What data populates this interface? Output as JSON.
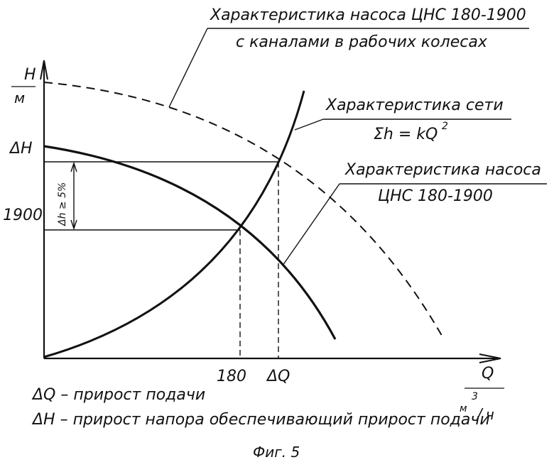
{
  "labels": {
    "pump_char_modified_line1": "Характеристика насоса ЦНС 180-1900",
    "pump_char_modified_line2": "с каналами в рабочих колесах",
    "network_char_line1": "Характеристика сети",
    "network_char_formula": "Σh = kQ",
    "network_char_exp": "2",
    "pump_char_line1": "Характеристика насоса",
    "pump_char_line2": "ЦНС 180-1900"
  },
  "axes": {
    "y_name": "H",
    "y_unit": "м",
    "x_name": "Q",
    "x_unit_m": "м",
    "x_unit_exp": "3",
    "x_unit_h": "ч",
    "slash": "/"
  },
  "ticks": {
    "dH": "ΔH",
    "h1900": "1900",
    "q180": "180",
    "dQ": "ΔQ",
    "delta_h": "Δh ≥ 5%"
  },
  "legend": {
    "line1": "ΔQ – прирост подачи",
    "line2": "ΔH – прирост напора обеспечивающий прирост подачи"
  },
  "caption": "Фиг. 5",
  "colors": {
    "ink": "#111111",
    "background": "#ffffff"
  }
}
